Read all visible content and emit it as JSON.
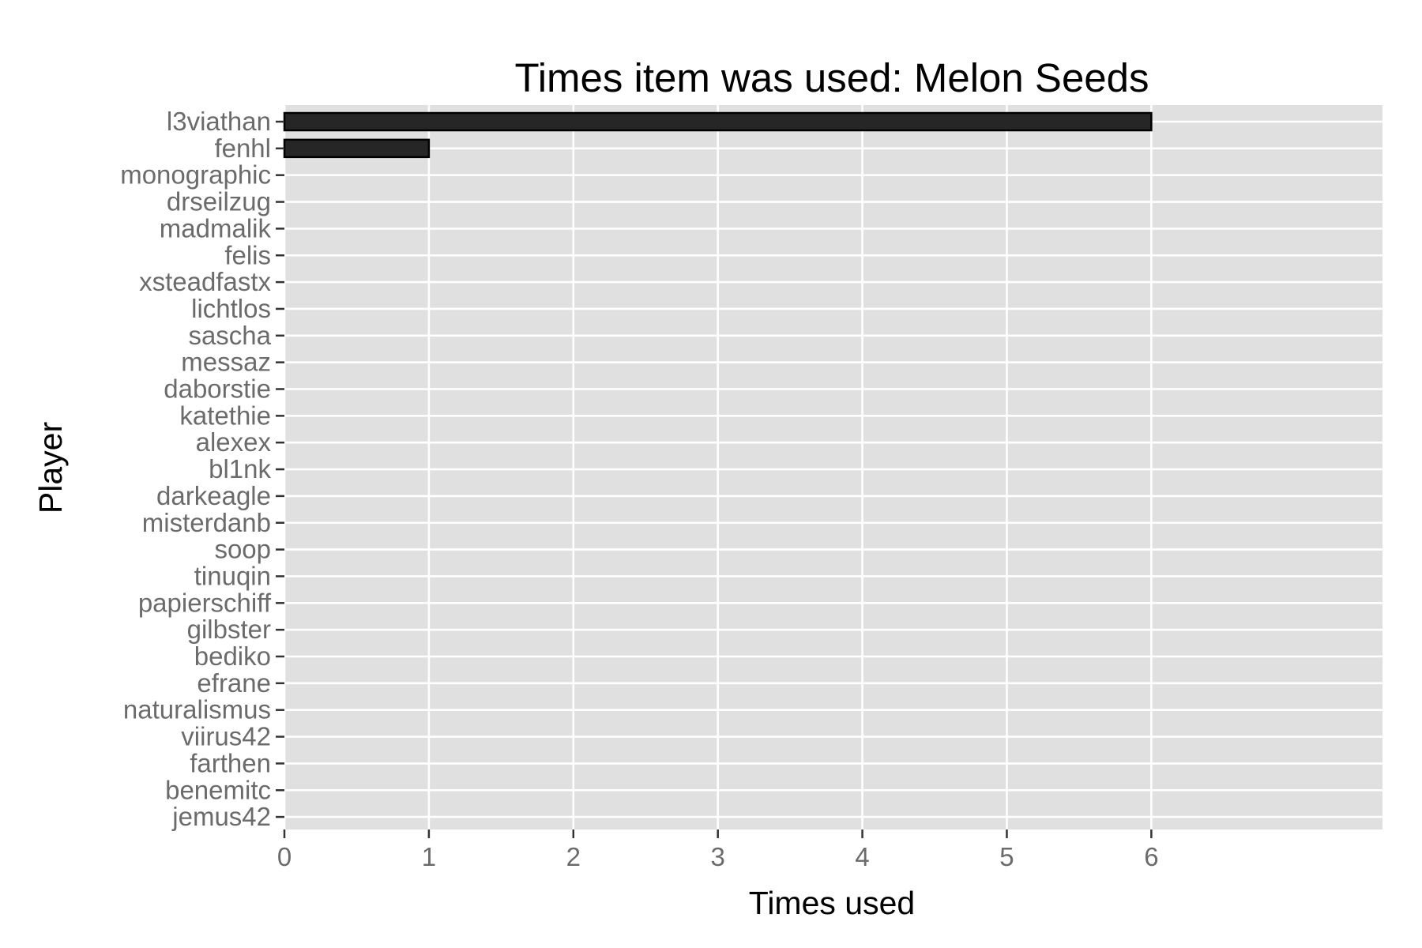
{
  "chart_data": {
    "type": "bar",
    "orientation": "horizontal",
    "title": "Times item was used: Melon Seeds",
    "xlabel": "Times used",
    "ylabel": "Player",
    "categories": [
      "l3viathan",
      "fenhl",
      "monographic",
      "drseilzug",
      "madmalik",
      "felis",
      "xsteadfastx",
      "lichtlos",
      "sascha",
      "messaz",
      "daborstie",
      "katethie",
      "alexex",
      "bl1nk",
      "darkeagle",
      "misterdanb",
      "soop",
      "tinuqin",
      "papierschiff",
      "gilbster",
      "bediko",
      "efrane",
      "naturalismus",
      "viirus42",
      "farthen",
      "benemitc",
      "jemus42"
    ],
    "values": [
      6,
      1,
      0,
      0,
      0,
      0,
      0,
      0,
      0,
      0,
      0,
      0,
      0,
      0,
      0,
      0,
      0,
      0,
      0,
      0,
      0,
      0,
      0,
      0,
      0,
      0,
      0
    ],
    "xlim": [
      0,
      7.6
    ],
    "xticks": [
      0,
      1,
      2,
      3,
      4,
      5,
      6
    ],
    "grid": true,
    "legend": "none",
    "colors": {
      "bar_fill": "#262626",
      "bar_stroke": "#000000",
      "panel_background": "#e0e0e0",
      "grid_line": "#ffffff",
      "tick_label": "#6b6b6b"
    }
  }
}
